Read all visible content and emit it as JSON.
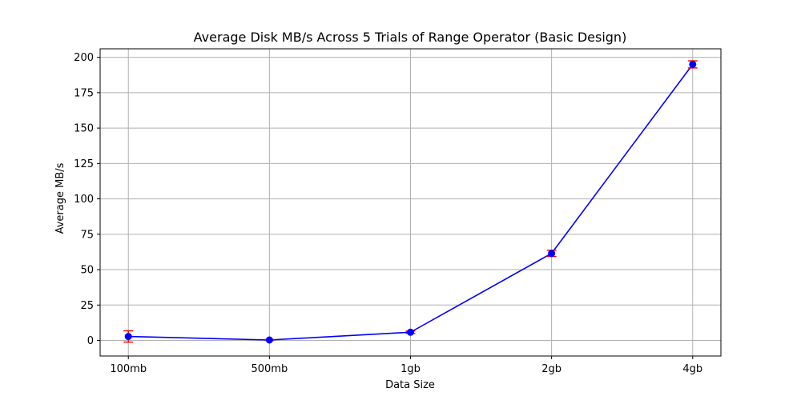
{
  "chart_data": {
    "type": "line",
    "title": "Average Disk MB/s Across 5 Trials of Range Operator (Basic Design)",
    "xlabel": "Data Size",
    "ylabel": "Average MB/s",
    "categories": [
      "100mb",
      "500mb",
      "1gb",
      "2gb",
      "4gb"
    ],
    "series": [
      {
        "values": [
          2.8,
          0.3,
          5.8,
          61.5,
          195.0
        ],
        "errors": [
          4.0,
          0.4,
          0.8,
          2.2,
          2.5
        ],
        "color": "#0000ff",
        "error_color": "#ff0000"
      }
    ],
    "ylim": [
      -11,
      206
    ],
    "yticks": [
      0,
      25,
      50,
      75,
      100,
      125,
      150,
      175,
      200
    ],
    "ytick_labels": [
      "0",
      "25",
      "50",
      "75",
      "100",
      "125",
      "150",
      "175",
      "200"
    ],
    "grid": true
  }
}
